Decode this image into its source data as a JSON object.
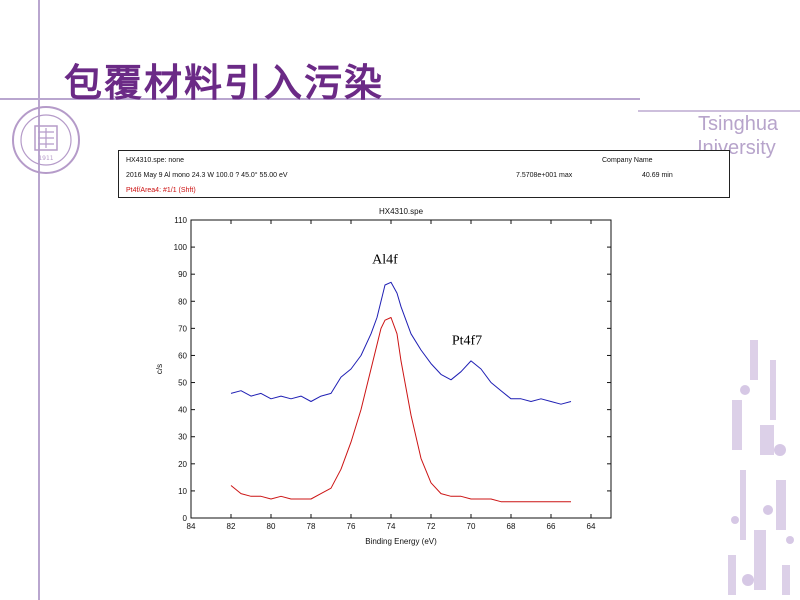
{
  "slide": {
    "title": "包覆材料引入污染",
    "brand_line1": "Tsinghua",
    "brand_line2": "University",
    "seal_year": "1911"
  },
  "info_panel": {
    "file": "HX4310.spe: none",
    "company": "Company Name",
    "params": "2016 May 9  Al mono  24.3 W  100.0 ?  45.0°  55.00 eV",
    "max": "7.5708e+001 max",
    "time": "40.69 min",
    "region": "Pt4f/Area4: #1/1 (Shft)"
  },
  "chart_data": {
    "type": "line",
    "title": "HX4310.spe",
    "xlabel": "Binding Energy (eV)",
    "ylabel": "c/s",
    "xlim": [
      84,
      63
    ],
    "ylim": [
      0,
      110
    ],
    "x_reversed": true,
    "xticks": [
      84,
      82,
      80,
      78,
      76,
      74,
      72,
      70,
      68,
      66,
      64
    ],
    "yticks": [
      0,
      10,
      20,
      30,
      40,
      50,
      60,
      70,
      80,
      90,
      100,
      110
    ],
    "grid": false,
    "legend": "none",
    "annotations": [
      {
        "text": "Al4f",
        "x": 74.3,
        "y": 94
      },
      {
        "text": "Pt4f7",
        "x": 70.2,
        "y": 64
      }
    ],
    "series": [
      {
        "color": "#1f1fb4",
        "x": [
          82,
          81.5,
          81,
          80.5,
          80,
          79.5,
          79,
          78.5,
          78,
          77.5,
          77,
          76.5,
          76,
          75.5,
          75,
          74.7,
          74.5,
          74.3,
          74,
          73.7,
          73.5,
          73,
          72.5,
          72,
          71.5,
          71,
          70.5,
          70,
          69.5,
          69,
          68.5,
          68,
          67.5,
          67,
          66.5,
          66,
          65.5,
          65
        ],
        "y": [
          46,
          47,
          45,
          46,
          44,
          45,
          44,
          45,
          43,
          45,
          46,
          52,
          55,
          60,
          68,
          74,
          80,
          86,
          87,
          83,
          78,
          68,
          62,
          57,
          53,
          51,
          54,
          58,
          55,
          50,
          47,
          44,
          44,
          43,
          44,
          43,
          42,
          43
        ]
      },
      {
        "color": "#cc1414",
        "x": [
          82,
          81.5,
          81,
          80.5,
          80,
          79.5,
          79,
          78.5,
          78,
          77.5,
          77,
          76.5,
          76,
          75.5,
          75,
          74.7,
          74.5,
          74.3,
          74,
          73.7,
          73.5,
          73,
          72.5,
          72,
          71.5,
          71,
          70.5,
          70,
          69.5,
          69,
          68.5,
          68,
          67.5,
          67,
          66.5,
          66,
          65.5,
          65
        ],
        "y": [
          12,
          9,
          8,
          8,
          7,
          8,
          7,
          7,
          7,
          9,
          11,
          18,
          28,
          40,
          55,
          64,
          70,
          73,
          74,
          68,
          58,
          38,
          22,
          13,
          9,
          8,
          8,
          7,
          7,
          7,
          6,
          6,
          6,
          6,
          6,
          6,
          6,
          6
        ]
      }
    ]
  }
}
